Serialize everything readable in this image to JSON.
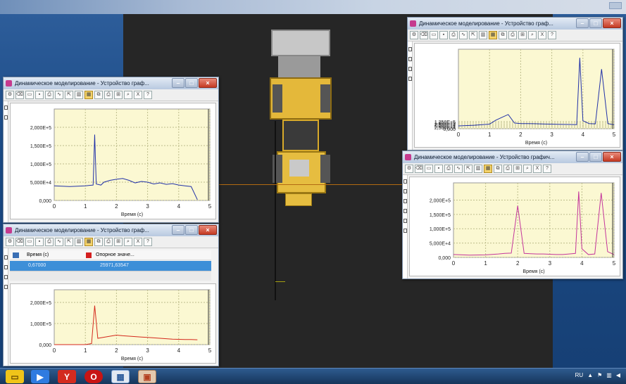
{
  "app": {
    "window_title": "Динамическое моделирование - Устройство граф...",
    "window_title_br": "Динамическое моделирование - Устройство графич...",
    "xlabel": "Время (с)",
    "x_ticks": [
      "0",
      "1",
      "2",
      "3",
      "4",
      "5"
    ]
  },
  "grid_panel": {
    "col_time": "Время (с)",
    "col_ref": "Опорное значе...",
    "row_time": "0,67000",
    "row_value": "25971,63547"
  },
  "taskbar": {
    "lang": "RU",
    "icons": [
      "folder-icon",
      "media-player-icon",
      "yandex-browser-icon",
      "opera-icon",
      "app-window-icon",
      "app-icon"
    ]
  },
  "colors": {
    "blue_series": "#2232a8",
    "magenta_series": "#c4359c",
    "red_series": "#d4281c",
    "plot_bg": "#fbf8d2"
  },
  "chart_data": [
    {
      "type": "line",
      "title": "",
      "xlabel": "Время (с)",
      "ylabel": "",
      "xlim": [
        0,
        5
      ],
      "ylim": [
        0,
        250000
      ],
      "y_ticks": [
        "0,000",
        "5,000E+4",
        "1,000E+5",
        "1,500E+5",
        "2,000E+5"
      ],
      "series": [
        {
          "color": "#2232a8",
          "x": [
            0,
            0.5,
            1.0,
            1.25,
            1.3,
            1.35,
            1.5,
            1.6,
            1.8,
            2.0,
            2.2,
            2.4,
            2.6,
            2.8,
            3.0,
            3.2,
            3.4,
            3.6,
            3.8,
            4.0,
            4.2,
            4.4,
            4.6
          ],
          "y": [
            40000,
            38000,
            40000,
            42000,
            180000,
            45000,
            42000,
            50000,
            55000,
            58000,
            60000,
            55000,
            48000,
            52000,
            50000,
            45000,
            48000,
            44000,
            46000,
            42000,
            40000,
            38000,
            2000
          ]
        }
      ]
    },
    {
      "type": "line",
      "title": "",
      "xlabel": "Время (с)",
      "ylabel": "",
      "xlim": [
        0,
        5
      ],
      "ylim": [
        0,
        260000
      ],
      "y_ticks": [
        "0,000",
        "1,000E+5",
        "2,000E+5"
      ],
      "series": [
        {
          "color": "#d4281c",
          "x": [
            0,
            0.5,
            1.0,
            1.2,
            1.3,
            1.4,
            1.6,
            1.8,
            2.0,
            2.2,
            2.4,
            2.6,
            2.8,
            3.0,
            3.2,
            3.4,
            3.6,
            3.8,
            4.0,
            4.2,
            4.4,
            4.6
          ],
          "y": [
            0,
            0,
            0,
            5000,
            185000,
            30000,
            35000,
            40000,
            45000,
            42000,
            40000,
            38000,
            36000,
            34000,
            32000,
            30000,
            28000,
            26000,
            25000,
            24000,
            24000,
            23000
          ]
        }
      ]
    },
    {
      "type": "line",
      "title": "",
      "xlabel": "Время (с)",
      "ylabel": "",
      "xlim": [
        0,
        5
      ],
      "ylim": [
        0,
        1400000
      ],
      "y_ticks": [
        "0,000",
        "2,500E+4",
        "5,000E+4",
        "7,500E+4",
        "1,000E+5",
        "1,250E+5"
      ],
      "series": [
        {
          "color": "#2232a8",
          "x": [
            0,
            0.5,
            1.0,
            1.2,
            1.4,
            1.6,
            1.8,
            2.0,
            2.2,
            2.4,
            2.6,
            2.8,
            3.0,
            3.2,
            3.4,
            3.6,
            3.8,
            3.9,
            4.0,
            4.2,
            4.4,
            4.6,
            4.8,
            5.0
          ],
          "y": [
            50000,
            60000,
            80000,
            150000,
            200000,
            250000,
            100000,
            90000,
            90000,
            88000,
            85000,
            82000,
            80000,
            78000,
            76000,
            74000,
            72000,
            1250000,
            140000,
            90000,
            85000,
            1050000,
            90000,
            70000
          ]
        }
      ]
    },
    {
      "type": "line",
      "title": "",
      "xlabel": "Время (с)",
      "ylabel": "",
      "xlim": [
        0,
        5
      ],
      "ylim": [
        0,
        260000
      ],
      "y_ticks": [
        "0,000",
        "5,000E+4",
        "1,000E+5",
        "1,500E+5",
        "2,000E+5"
      ],
      "series": [
        {
          "color": "#c4359c",
          "x": [
            0,
            0.5,
            1.0,
            1.4,
            1.6,
            1.8,
            2.0,
            2.2,
            2.4,
            2.6,
            2.8,
            3.0,
            3.2,
            3.4,
            3.6,
            3.8,
            3.9,
            4.0,
            4.2,
            4.4,
            4.6,
            4.8,
            5.0
          ],
          "y": [
            10000,
            8000,
            9000,
            12000,
            14000,
            15000,
            180000,
            14000,
            13000,
            12000,
            12000,
            11000,
            10000,
            10000,
            12000,
            14000,
            230000,
            30000,
            10000,
            12000,
            225000,
            20000,
            10000
          ]
        }
      ]
    }
  ]
}
